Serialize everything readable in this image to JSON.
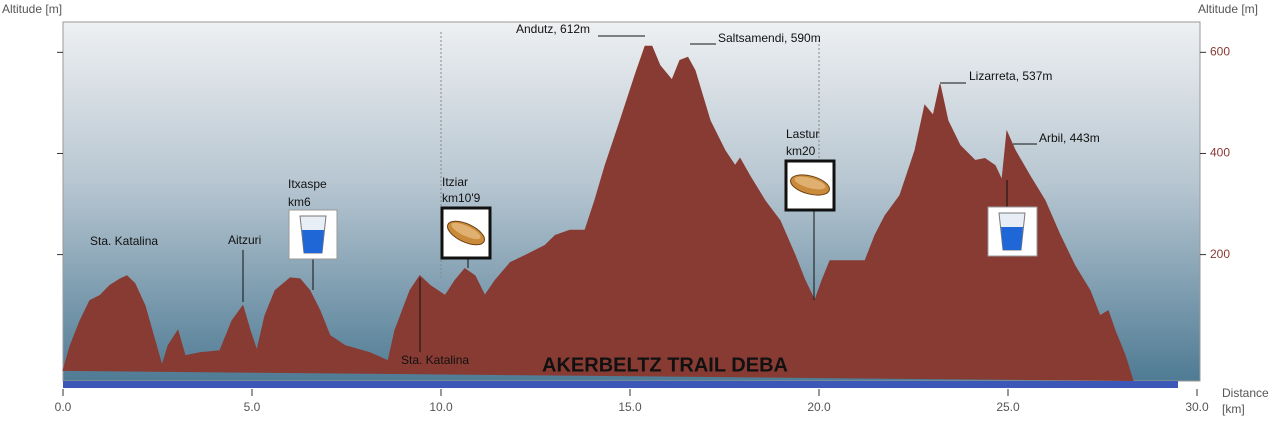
{
  "chart_data": {
    "type": "area",
    "title": "AKERBELTZ TRAIL DEBA",
    "y_label": "Altitude [m]",
    "y2_label": "Altitude [m]",
    "x_label": "Distance",
    "x_unit": "[km]",
    "color": "#883b33",
    "xlim": [
      0,
      30
    ],
    "xticks": [
      {
        "value": 0,
        "label": "0.0"
      },
      {
        "value": 5,
        "label": "5.0"
      },
      {
        "value": 10,
        "label": "10.0"
      },
      {
        "value": 15,
        "label": "15.0"
      },
      {
        "value": 20,
        "label": "20.0"
      },
      {
        "value": 25,
        "label": "25.0"
      },
      {
        "value": 30,
        "label": "30.0"
      }
    ],
    "ylim": [
      -50,
      660
    ],
    "yticks": [
      200,
      400,
      600
    ],
    "x": [
      0,
      0.19,
      0.45,
      0.71,
      0.98,
      1.24,
      1.51,
      1.69,
      1.9,
      2.17,
      2.43,
      2.62,
      2.78,
      3.04,
      3.23,
      3.62,
      4.15,
      4.47,
      4.76,
      4.95,
      5.13,
      5.34,
      5.61,
      6.01,
      6.27,
      6.53,
      6.8,
      7.06,
      7.46,
      8.12,
      8.6,
      8.78,
      9.18,
      9.44,
      9.71,
      10.11,
      10.37,
      10.63,
      10.9,
      11.16,
      11.43,
      11.83,
      12.22,
      12.75,
      13.02,
      13.41,
      13.81,
      14.07,
      14.34,
      14.74,
      15.13,
      15.4,
      15.58,
      15.79,
      16.11,
      16.32,
      16.53,
      16.72,
      17.12,
      17.51,
      17.78,
      17.91,
      18.17,
      18.57,
      18.97,
      19.37,
      19.63,
      19.89,
      20.08,
      20.29,
      20.69,
      21.22,
      21.48,
      21.75,
      22.14,
      22.54,
      22.8,
      23.02,
      23.2,
      23.41,
      23.73,
      24.13,
      24.39,
      24.66,
      24.84,
      24.97,
      25.19,
      25.58,
      25.98,
      26.38,
      26.77,
      27.17,
      27.43,
      27.65,
      27.83,
      28.1,
      28.31
    ],
    "values": [
      -30,
      20,
      69,
      109,
      119,
      139,
      152,
      158,
      143,
      99,
      30,
      -20,
      20,
      50,
      0,
      6,
      10,
      69,
      99,
      50,
      10,
      79,
      129,
      154,
      152,
      129,
      89,
      40,
      20,
      6,
      -10,
      50,
      129,
      158,
      139,
      119,
      149,
      172,
      158,
      119,
      149,
      184,
      198,
      218,
      238,
      248,
      248,
      307,
      376,
      465,
      554,
      612,
      612,
      574,
      545,
      584,
      590,
      564,
      465,
      406,
      376,
      390,
      356,
      307,
      267,
      198,
      149,
      109,
      149,
      188,
      188,
      188,
      238,
      277,
      317,
      406,
      495,
      475,
      537,
      465,
      416,
      386,
      390,
      376,
      347,
      443,
      406,
      356,
      307,
      238,
      178,
      129,
      79,
      89,
      50,
      0,
      -50
    ],
    "annotations": [
      "Andutz, 612m",
      "Saltsamendi, 590m",
      "Lizarreta, 537m",
      "Arbil, 443m",
      "Sta. Katalina",
      "Aitzuri",
      "Itxaspe",
      "km6",
      "Itziar",
      "km10'9",
      "Lastur",
      "km20",
      "Sta. Katalina"
    ]
  }
}
